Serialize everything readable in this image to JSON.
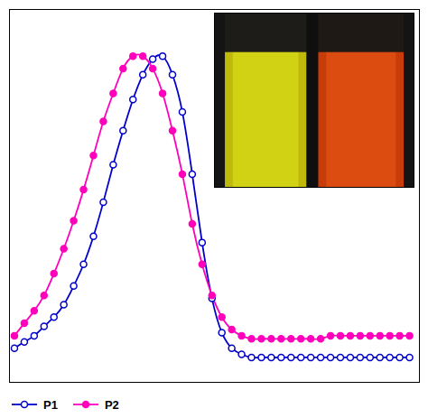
{
  "chart_data": {
    "type": "line",
    "x": [
      300,
      310,
      320,
      330,
      340,
      350,
      360,
      370,
      380,
      390,
      400,
      410,
      420,
      430,
      440,
      450,
      460,
      470,
      480,
      490,
      500,
      510,
      520,
      530,
      540,
      550,
      560,
      570,
      580,
      590,
      600,
      610,
      620,
      630,
      640,
      650,
      660,
      670,
      680,
      690,
      700
    ],
    "series": [
      {
        "name": "P1",
        "color": "#0000CC",
        "marker": "open circle",
        "values": [
          0.06,
          0.08,
          0.1,
          0.13,
          0.16,
          0.2,
          0.26,
          0.33,
          0.42,
          0.53,
          0.65,
          0.76,
          0.86,
          0.94,
          0.99,
          1.0,
          0.94,
          0.82,
          0.62,
          0.4,
          0.22,
          0.11,
          0.06,
          0.04,
          0.03,
          0.03,
          0.03,
          0.03,
          0.03,
          0.03,
          0.03,
          0.03,
          0.03,
          0.03,
          0.03,
          0.03,
          0.03,
          0.03,
          0.03,
          0.03,
          0.03
        ]
      },
      {
        "name": "P2",
        "color": "#FF00BB",
        "marker": "circle",
        "values": [
          0.1,
          0.14,
          0.18,
          0.23,
          0.3,
          0.38,
          0.47,
          0.57,
          0.68,
          0.79,
          0.88,
          0.96,
          1.0,
          1.0,
          0.96,
          0.88,
          0.76,
          0.62,
          0.46,
          0.33,
          0.23,
          0.16,
          0.12,
          0.1,
          0.09,
          0.09,
          0.09,
          0.09,
          0.09,
          0.09,
          0.09,
          0.09,
          0.1,
          0.1,
          0.1,
          0.1,
          0.1,
          0.1,
          0.1,
          0.1,
          0.1
        ]
      }
    ],
    "xlim": [
      295,
      710
    ],
    "ylim": [
      -0.05,
      1.15
    ],
    "xticks": [],
    "yticks": [],
    "tick_labels": false,
    "grid": false,
    "legend": "lower left"
  }
}
